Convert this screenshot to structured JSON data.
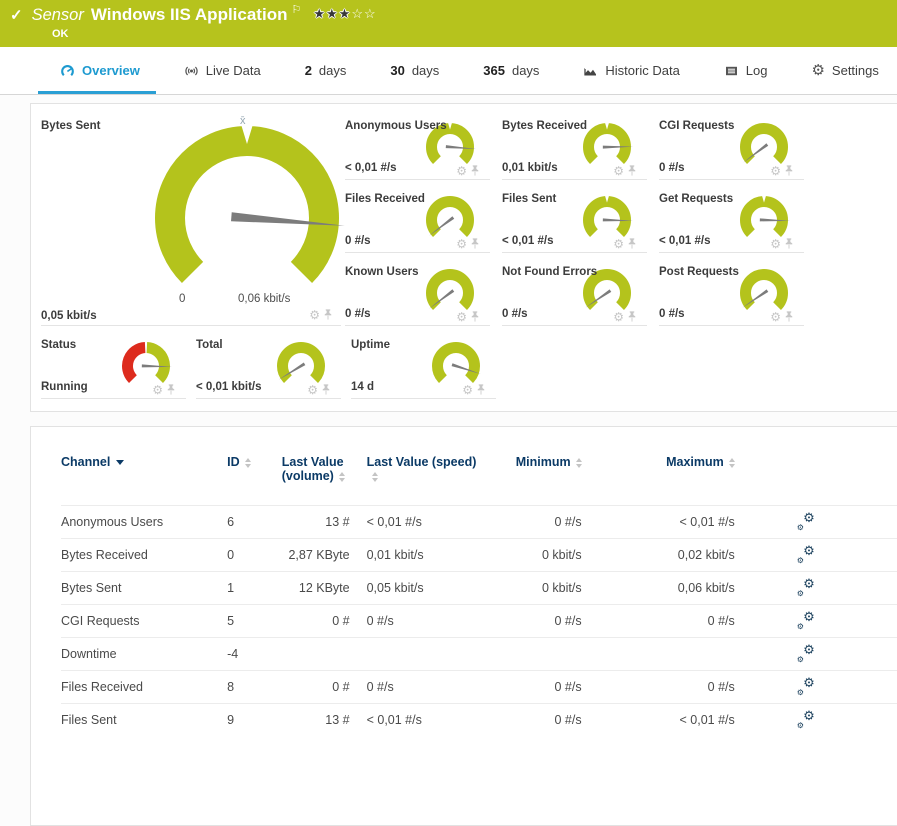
{
  "colors": {
    "ok_green": "#b6c31d",
    "gauge_green": "#b4c31c",
    "status_red": "#dd2b1d",
    "accent_blue": "#2a9fd4",
    "header_navy": "#0b3a66",
    "needle_gray": "#7c7c7c"
  },
  "header": {
    "kind_label": "Sensor",
    "title": "Windows IIS Application",
    "status_text": "OK",
    "rating": {
      "filled": 3,
      "total": 5
    }
  },
  "tabs": [
    {
      "prefix": "",
      "label": "Overview",
      "icon": "gauge-icon",
      "active": true
    },
    {
      "prefix": "",
      "label": "Live Data",
      "icon": "live-data-icon",
      "active": false
    },
    {
      "prefix": "2",
      "label": "days",
      "icon": "",
      "active": false
    },
    {
      "prefix": "30",
      "label": "days",
      "icon": "",
      "active": false
    },
    {
      "prefix": "365",
      "label": "days",
      "icon": "",
      "active": false
    },
    {
      "prefix": "",
      "label": "Historic Data",
      "icon": "historic-data-icon",
      "active": false
    },
    {
      "prefix": "",
      "label": "Log",
      "icon": "log-icon",
      "active": false
    },
    {
      "prefix": "",
      "label": "Settings",
      "icon": "settings-icon",
      "active": false
    }
  ],
  "gauges": {
    "primary": {
      "label": "Bytes Sent",
      "value": "0,05 kbit/s",
      "scale_min": "0",
      "scale_max": "0,06 kbit/s",
      "avg_marker": "x̄",
      "fraction": 0.85,
      "notch": true
    },
    "small": [
      {
        "label": "Anonymous Users",
        "value": "< 0,01 #/s",
        "fraction": 0.85,
        "notch": true
      },
      {
        "label": "Bytes Received",
        "value": "0,01 kbit/s",
        "fraction": 0.83,
        "notch": true
      },
      {
        "label": "CGI Requests",
        "value": "0 #/s",
        "fraction": 0.03,
        "notch": false
      },
      {
        "label": "Files Received",
        "value": "0 #/s",
        "fraction": 0.03,
        "notch": false
      },
      {
        "label": "Files Sent",
        "value": "< 0,01 #/s",
        "fraction": 0.84,
        "notch": true
      },
      {
        "label": "Get Requests",
        "value": "< 0,01 #/s",
        "fraction": 0.84,
        "notch": true
      },
      {
        "label": "Known Users",
        "value": "0 #/s",
        "fraction": 0.03,
        "notch": false
      },
      {
        "label": "Not Found Errors",
        "value": "0 #/s",
        "fraction": 0.04,
        "notch": false
      },
      {
        "label": "Post Requests",
        "value": "0 #/s",
        "fraction": 0.04,
        "notch": false
      }
    ],
    "bottom": [
      {
        "label": "Status",
        "value": "Running",
        "fraction": 0.84,
        "type": "status",
        "notch": false
      },
      {
        "label": "Total",
        "value": "< 0,01 kbit/s",
        "fraction": 0.05,
        "type": "green",
        "notch": false
      },
      {
        "label": "Uptime",
        "value": "14 d",
        "fraction": 0.9,
        "type": "green",
        "notch": false
      }
    ]
  },
  "table": {
    "columns": [
      "Channel",
      "ID",
      "Last Value (volume)",
      "Last Value (speed)",
      "Minimum",
      "Maximum"
    ],
    "rows": [
      {
        "channel": "Anonymous Users",
        "id": "6",
        "volume": "13 #",
        "speed": "< 0,01 #/s",
        "min": "0 #/s",
        "max": "< 0,01 #/s"
      },
      {
        "channel": "Bytes Received",
        "id": "0",
        "volume": "2,87 KByte",
        "speed": "0,01 kbit/s",
        "min": "0 kbit/s",
        "max": "0,02 kbit/s"
      },
      {
        "channel": "Bytes Sent",
        "id": "1",
        "volume": "12 KByte",
        "speed": "0,05 kbit/s",
        "min": "0 kbit/s",
        "max": "0,06 kbit/s"
      },
      {
        "channel": "CGI Requests",
        "id": "5",
        "volume": "0 #",
        "speed": "0 #/s",
        "min": "0 #/s",
        "max": "0 #/s"
      },
      {
        "channel": "Downtime",
        "id": "-4",
        "volume": "",
        "speed": "",
        "min": "",
        "max": ""
      },
      {
        "channel": "Files Received",
        "id": "8",
        "volume": "0 #",
        "speed": "0 #/s",
        "min": "0 #/s",
        "max": "0 #/s"
      },
      {
        "channel": "Files Sent",
        "id": "9",
        "volume": "13 #",
        "speed": "< 0,01 #/s",
        "min": "0 #/s",
        "max": "< 0,01 #/s"
      }
    ]
  }
}
